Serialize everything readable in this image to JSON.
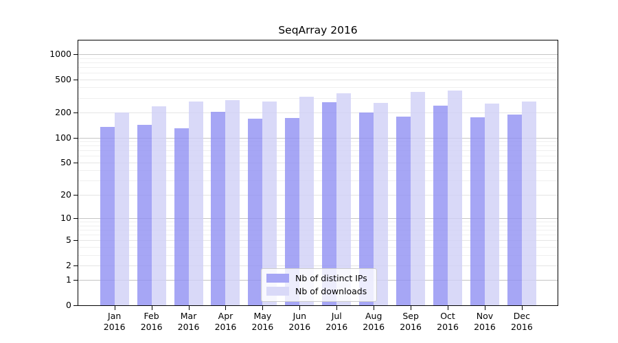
{
  "chart_data": {
    "type": "bar",
    "title": "SeqArray 2016",
    "x_year": "2016",
    "categories": [
      "Jan",
      "Feb",
      "Mar",
      "Apr",
      "May",
      "Jun",
      "Jul",
      "Aug",
      "Sep",
      "Oct",
      "Nov",
      "Dec"
    ],
    "series": [
      {
        "name": "Nb of distinct IPs",
        "color": "#a6a6f5",
        "values": [
          135,
          141,
          129,
          203,
          170,
          172,
          266,
          201,
          180,
          243,
          176,
          190
        ]
      },
      {
        "name": "Nb of downloads",
        "color": "#d9d9f8",
        "values": [
          199,
          239,
          270,
          283,
          269,
          310,
          340,
          260,
          353,
          367,
          256,
          269
        ]
      }
    ],
    "yticks": [
      0,
      1,
      2,
      5,
      10,
      20,
      50,
      100,
      200,
      500,
      1000
    ],
    "y_scale": "log10(value+1)",
    "ylim": [
      0,
      1001
    ],
    "grid": "horizontal",
    "legend_position": "bottom-center",
    "colors": {
      "axis": "#000000",
      "grid_decade": "#c4c4c4",
      "grid_major": "#e4e4e4",
      "grid_minor": "#efefef",
      "background": "#ffffff"
    }
  }
}
